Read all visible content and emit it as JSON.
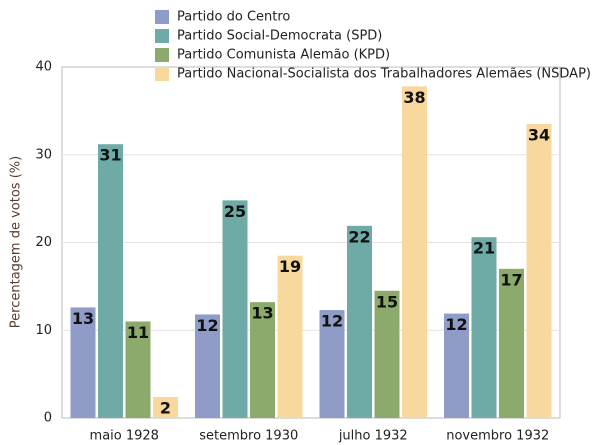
{
  "chart_data": {
    "type": "bar",
    "ylabel": "Percentagem de votos (%)",
    "categories": [
      "maio 1928",
      "setembro 1930",
      "julho 1932",
      "novembro 1932"
    ],
    "series": [
      {
        "name": "Partido do Centro",
        "color": "#8f9cc7",
        "values": [
          12.6,
          11.8,
          12.3,
          11.9
        ],
        "value_labels": [
          "13",
          "12",
          "12",
          "12"
        ]
      },
      {
        "name": "Partido Social-Democrata (SPD)",
        "color": "#6eaaa6",
        "values": [
          31.2,
          24.8,
          21.9,
          20.6
        ],
        "value_labels": [
          "31",
          "25",
          "22",
          "21"
        ]
      },
      {
        "name": "Partido Comunista Alemão (KPD)",
        "color": "#8baa6c",
        "values": [
          11,
          13.2,
          14.5,
          17
        ],
        "value_labels": [
          "11",
          "13",
          "15",
          "17"
        ]
      },
      {
        "name": "Partido Nacional-Socialista dos Trabalhadores Alemães (NSDAP)",
        "color": "#f8d89c",
        "values": [
          2.4,
          18.5,
          37.8,
          33.5
        ],
        "value_labels": [
          "2",
          "19",
          "38",
          "34"
        ]
      }
    ],
    "ylim": [
      0,
      40
    ],
    "yticks": [
      0,
      10,
      20,
      30,
      40
    ],
    "grid": true
  }
}
